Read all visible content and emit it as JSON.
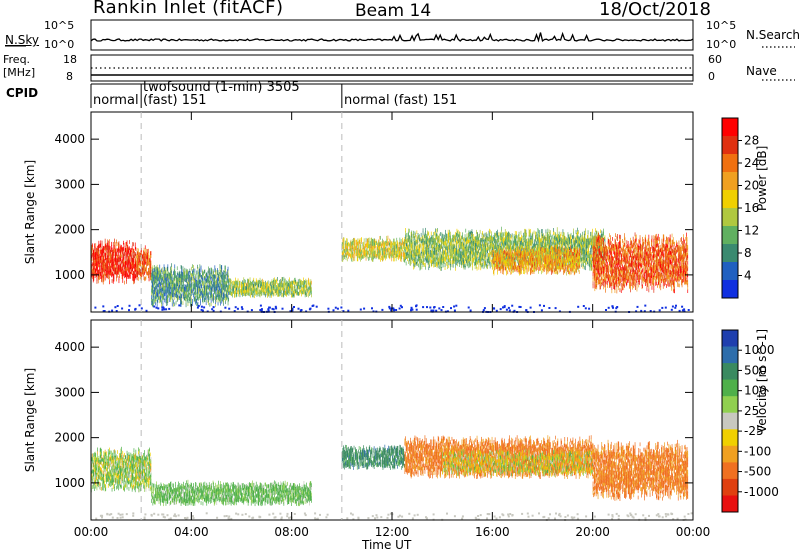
{
  "header": {
    "station": "Rankin Inlet (fitACF)",
    "beam": "Beam 14",
    "date": "18/Oct/2018"
  },
  "noise_panel": {
    "left_label": "N.Sky",
    "right_label": "N.Search",
    "left_ticks": [
      "10^5",
      "10^0"
    ],
    "right_ticks": [
      "10^5",
      "10^0"
    ]
  },
  "freq_panel": {
    "left_label_1": "Freq.",
    "left_label_2": "[MHz]",
    "right_label": "Nave",
    "left_ticks": [
      "18",
      "8"
    ],
    "right_ticks": [
      "60",
      "0"
    ]
  },
  "cpid": {
    "label": "CPID",
    "segments": [
      {
        "start_hour": 0.0,
        "text": "normal"
      },
      {
        "start_hour": 2.0,
        "text": "twofsound (1-min) 3505"
      },
      {
        "start_hour": 2.0,
        "text": "(fast) 151"
      },
      {
        "start_hour": 10.0,
        "text": "normal (fast) 151"
      }
    ]
  },
  "chart_data": [
    {
      "type": "heatmap",
      "title": "Power",
      "xlabel": "Time UT",
      "ylabel": "Slant Range [km]",
      "x_range_hours": [
        0,
        24
      ],
      "x_ticks": [
        "00:00",
        "04:00",
        "08:00",
        "12:00",
        "16:00",
        "20:00",
        "00:00"
      ],
      "ylim": [
        180,
        4600
      ],
      "y_ticks": [
        1000,
        2000,
        3000,
        4000
      ],
      "colorbar": {
        "label": "Power [dB]",
        "ticks": [
          "28",
          "24",
          "20",
          "16",
          "12",
          "8",
          "4"
        ],
        "colors": [
          "#1030e0",
          "#2060c0",
          "#3a8a70",
          "#60b060",
          "#b0c840",
          "#f0d000",
          "#f0a020",
          "#f07010",
          "#e03010",
          "#ff0000"
        ]
      },
      "blobs": [
        {
          "x0": 0.0,
          "x1": 1.8,
          "r0": 800,
          "r1": 1750,
          "value": 27
        },
        {
          "x0": 1.8,
          "x1": 2.4,
          "r0": 850,
          "r1": 1600,
          "value": 24
        },
        {
          "x0": 2.4,
          "x1": 5.5,
          "r0": 300,
          "r1": 1200,
          "value": 10
        },
        {
          "x0": 5.5,
          "x1": 8.8,
          "r0": 500,
          "r1": 900,
          "value": 14
        },
        {
          "x0": 10.0,
          "x1": 12.5,
          "r0": 1300,
          "r1": 1800,
          "value": 16
        },
        {
          "x0": 12.5,
          "x1": 20.5,
          "r0": 1100,
          "r1": 2000,
          "value": 13
        },
        {
          "x0": 16.0,
          "x1": 19.5,
          "r0": 1000,
          "r1": 1600,
          "value": 20
        },
        {
          "x0": 20.0,
          "x1": 23.8,
          "r0": 600,
          "r1": 1900,
          "value": 24
        }
      ]
    },
    {
      "type": "heatmap",
      "title": "Velocity",
      "xlabel": "Time UT",
      "ylabel": "Slant Range [km]",
      "x_range_hours": [
        0,
        24
      ],
      "x_ticks": [
        "00:00",
        "04:00",
        "08:00",
        "12:00",
        "16:00",
        "20:00",
        "00:00"
      ],
      "ylim": [
        180,
        4600
      ],
      "y_ticks": [
        1000,
        2000,
        3000,
        4000
      ],
      "colorbar": {
        "label": "Velocity [m s^-1]",
        "ticks": [
          "1000",
          "500",
          "100",
          "25",
          "-25",
          "-100",
          "-500",
          "-1000"
        ],
        "colors": [
          "#1f3fae",
          "#2d6dab",
          "#3a8a60",
          "#4fb04a",
          "#90d050",
          "#c8c8c0",
          "#f0d000",
          "#f0a020",
          "#f07020",
          "#e04010",
          "#e81010"
        ]
      },
      "blobs": [
        {
          "x0": 0.0,
          "x1": 2.4,
          "r0": 800,
          "r1": 1750,
          "value": 80
        },
        {
          "x0": 2.4,
          "x1": 8.8,
          "r0": 500,
          "r1": 1000,
          "value": 150
        },
        {
          "x0": 10.0,
          "x1": 12.5,
          "r0": 1300,
          "r1": 1800,
          "value": 400
        },
        {
          "x0": 12.5,
          "x1": 20.0,
          "r0": 1100,
          "r1": 2000,
          "value": -150
        },
        {
          "x0": 14.0,
          "x1": 20.0,
          "r0": 1150,
          "r1": 1700,
          "value": 0
        },
        {
          "x0": 20.0,
          "x1": 23.8,
          "r0": 600,
          "r1": 1900,
          "value": -150
        }
      ]
    }
  ]
}
